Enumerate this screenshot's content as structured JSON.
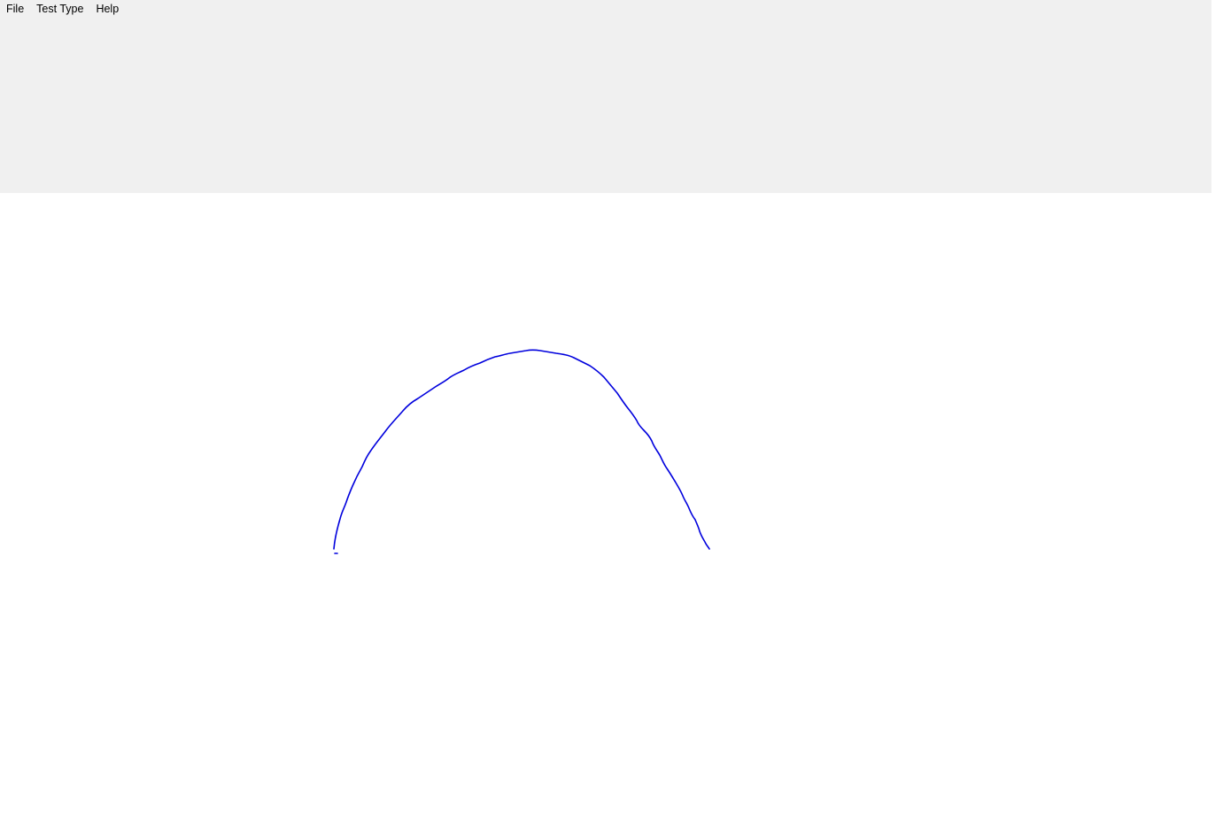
{
  "menu": {
    "items": [
      {
        "label": "File"
      },
      {
        "label": "Test Type"
      },
      {
        "label": "Help"
      }
    ]
  },
  "canvas": {
    "stroke_color": "#0000dd",
    "background_color": "#ffffff"
  },
  "top_panel": {
    "background_color": "#f0f0f0"
  }
}
